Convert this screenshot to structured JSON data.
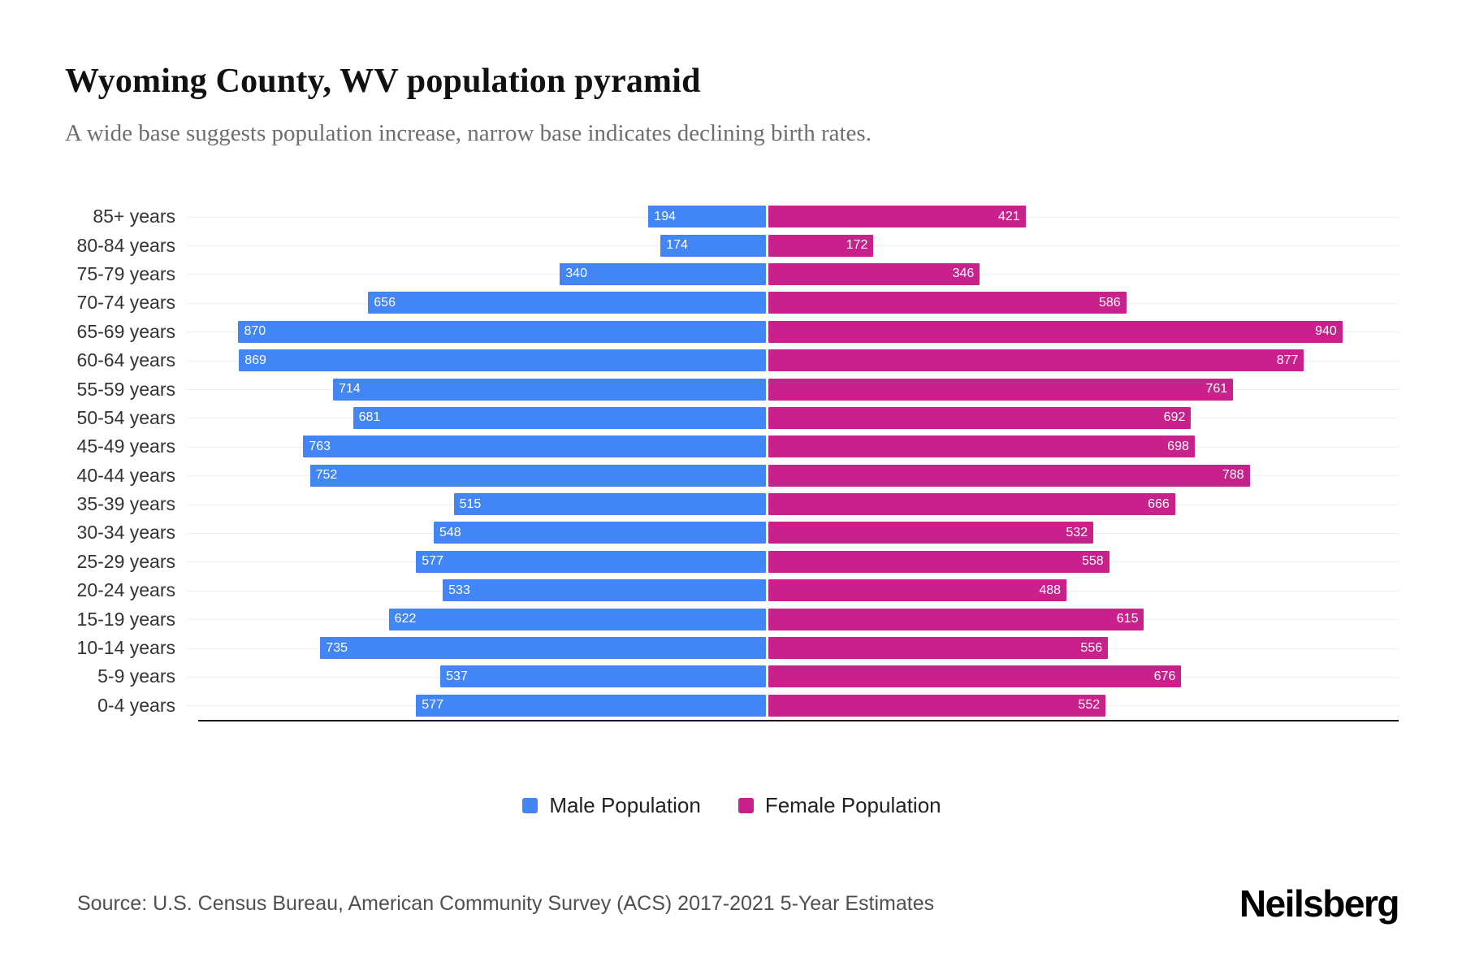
{
  "header": {
    "title": "Wyoming County, WV population pyramid",
    "subtitle": "A wide base suggests population increase, narrow base indicates declining birth rates."
  },
  "chart_data": {
    "type": "bar",
    "variant": "population-pyramid",
    "orientation": "horizontal",
    "grid": "horizontal-faint",
    "legend_position": "bottom",
    "value_labels": "inside-white",
    "categories": [
      "85+ years",
      "80-84 years",
      "75-79 years",
      "70-74 years",
      "65-69 years",
      "60-64 years",
      "55-59 years",
      "50-54 years",
      "45-49 years",
      "40-44 years",
      "35-39 years",
      "30-34 years",
      "25-29 years",
      "20-24 years",
      "15-19 years",
      "10-14 years",
      "5-9 years",
      "0-4 years"
    ],
    "series": [
      {
        "name": "Male Population",
        "color": "#4285F4",
        "side": "left",
        "values": [
          194,
          174,
          340,
          656,
          870,
          869,
          714,
          681,
          763,
          752,
          515,
          548,
          577,
          533,
          622,
          735,
          537,
          577
        ]
      },
      {
        "name": "Female Population",
        "color": "#C9218C",
        "side": "right",
        "values": [
          421,
          172,
          346,
          586,
          940,
          877,
          761,
          692,
          698,
          788,
          666,
          532,
          558,
          488,
          615,
          556,
          676,
          552
        ]
      }
    ]
  },
  "footer": {
    "source": "Source: U.S. Census Bureau, American Community Survey (ACS) 2017-2021 5-Year Estimates",
    "brand": "Neilsberg"
  }
}
